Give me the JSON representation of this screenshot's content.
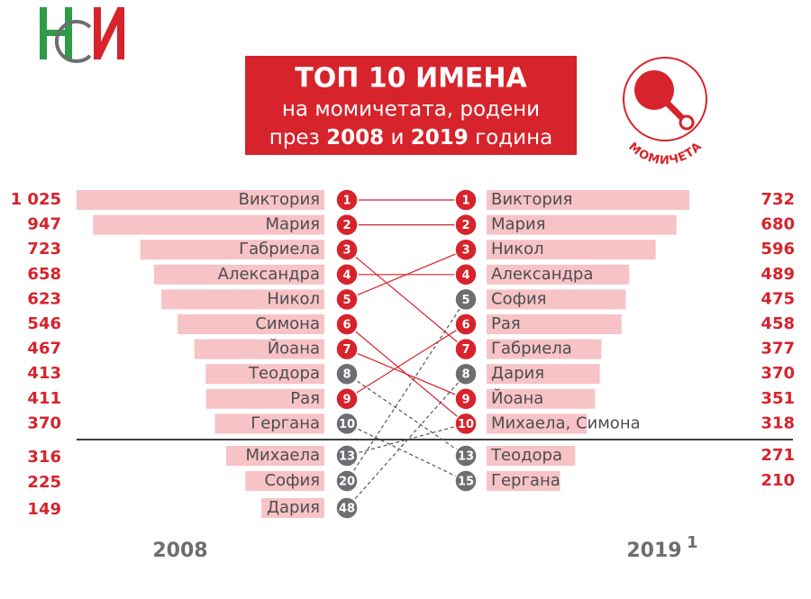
{
  "chart_data": {
    "type": "bump",
    "title": "ТОП 10 ИМЕНА",
    "subtitle": "на момичетата, родени",
    "subtitle2": [
      "през",
      "2008",
      "и",
      "2019",
      "година"
    ],
    "badge": "МОМИЧЕТА",
    "bar_color": "#f7c3c6",
    "left": {
      "year": "2008",
      "names": [
        "Виктория",
        "Мария",
        "Габриела",
        "Александра",
        "Никол",
        "Симона",
        "Йоана",
        "Теодора",
        "Рая",
        "Гергана",
        "Михаела",
        "София",
        "Дария"
      ],
      "values": [
        1025,
        947,
        723,
        658,
        623,
        546,
        467,
        413,
        411,
        370,
        316,
        225,
        149
      ],
      "value_labels": [
        "1 025",
        "947",
        "723",
        "658",
        "623",
        "546",
        "467",
        "413",
        "411",
        "370",
        "316",
        "225",
        "149"
      ],
      "ranks": [
        1,
        2,
        3,
        4,
        5,
        6,
        7,
        8,
        9,
        10,
        13,
        20,
        48
      ],
      "colors": [
        "#d7232b",
        "#d7232b",
        "#d7232b",
        "#d7232b",
        "#d7232b",
        "#d7232b",
        "#d7232b",
        "#6d6e71",
        "#d7232b",
        "#6d6e71",
        "#6d6e71",
        "#6d6e71",
        "#6d6e71"
      ]
    },
    "right": {
      "year": "2019",
      "footnote": "1",
      "names": [
        "Виктория",
        "Мария",
        "Никол",
        "Александра",
        "София",
        "Рая",
        "Габриела",
        "Дария",
        "Йоана",
        "Михаела, Симона",
        "Теодора",
        "Гергана"
      ],
      "values": [
        732,
        680,
        596,
        489,
        475,
        458,
        377,
        370,
        351,
        318,
        271,
        210
      ],
      "ranks": [
        1,
        2,
        3,
        4,
        5,
        6,
        7,
        8,
        9,
        10,
        13,
        15
      ],
      "colors": [
        "#d7232b",
        "#d7232b",
        "#d7232b",
        "#d7232b",
        "#6d6e71",
        "#d7232b",
        "#d7232b",
        "#6d6e71",
        "#d7232b",
        "#d7232b",
        "#6d6e71",
        "#6d6e71"
      ]
    }
  }
}
